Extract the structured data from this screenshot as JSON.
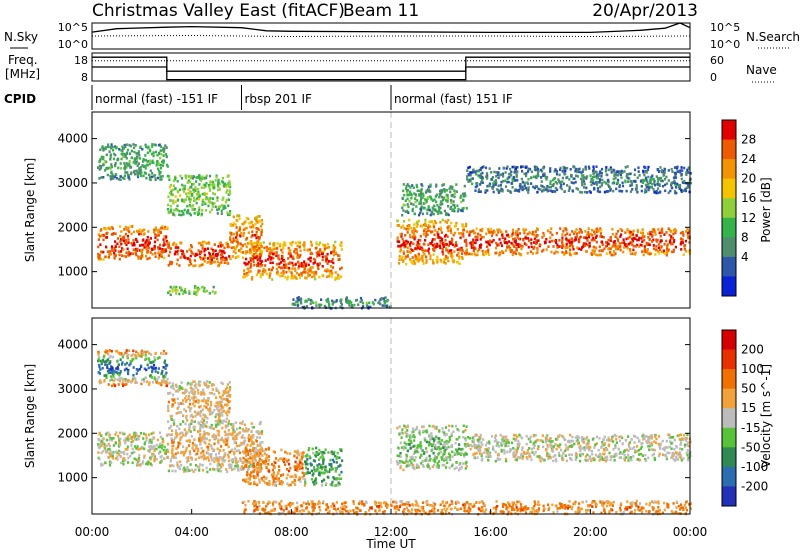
{
  "header": {
    "station": "Christmas Valley East (fitACF)",
    "beam": "Beam 11",
    "date": "20/Apr/2013"
  },
  "colors": {
    "power": [
      "#0a22d6",
      "#2d57a8",
      "#4f8d6f",
      "#35b24a",
      "#8fcf3a",
      "#f5c400",
      "#f39300",
      "#ee5a00",
      "#e10000"
    ],
    "velocity": [
      "#2330b8",
      "#2a6db0",
      "#2e8a52",
      "#58c23a",
      "#bcbcbc",
      "#f2a23a",
      "#f07000",
      "#e83000",
      "#d60000"
    ],
    "ground_scatter": "#bcbcbc"
  },
  "chart_data": [
    {
      "type": "line",
      "name_left": "N.Sky",
      "name_right": "N.Search",
      "y_ticks_left": [
        "10^5",
        "10^0"
      ],
      "y_ticks_right": [
        "10^5",
        "10^0"
      ],
      "series": [
        {
          "line": "solid",
          "t": [
            0,
            1,
            3,
            4,
            6,
            7,
            8,
            12,
            16,
            20,
            22,
            23,
            23.6,
            24
          ],
          "values": [
            0.65,
            0.78,
            0.84,
            0.86,
            0.82,
            0.7,
            0.68,
            0.66,
            0.64,
            0.64,
            0.72,
            0.8,
            1.0,
            0.82
          ]
        },
        {
          "line": "dotted",
          "t": [
            0,
            4,
            8,
            12,
            16,
            20,
            24
          ],
          "values": [
            0.5,
            0.52,
            0.48,
            0.5,
            0.5,
            0.48,
            0.5
          ]
        }
      ]
    },
    {
      "type": "line",
      "name_left_1": "Freq.",
      "name_left_2": "[MHz]",
      "name_right": "Nave",
      "y_ticks_left": [
        "18",
        "8"
      ],
      "y_ticks_right": [
        "60",
        "0"
      ],
      "series": [
        {
          "line": "solid",
          "t": [
            0,
            3,
            3,
            15,
            15,
            24
          ],
          "values": [
            0.85,
            0.85,
            0.35,
            0.35,
            0.85,
            0.85
          ]
        },
        {
          "line": "solid",
          "t": [
            0,
            3,
            3,
            15,
            15,
            24
          ],
          "values": [
            0.5,
            0.5,
            0.05,
            0.05,
            0.5,
            0.5
          ]
        },
        {
          "line": "dotted",
          "t": [
            0,
            24
          ],
          "values": [
            0.72,
            0.72
          ]
        }
      ]
    },
    {
      "type": "table",
      "label": "CPID",
      "segments": [
        {
          "start": 0,
          "end": 6,
          "text": "normal (fast) -151 IF"
        },
        {
          "start": 6,
          "end": 12,
          "text": "rbsp 201 IF"
        },
        {
          "start": 12,
          "end": 24,
          "text": "normal (fast) 151 IF"
        }
      ]
    },
    {
      "type": "heatmap",
      "ylabel": "Slant Range [km]",
      "xlim": [
        0,
        24
      ],
      "ylim": [
        180,
        4600
      ],
      "y_ticks": [
        1000,
        2000,
        3000,
        4000
      ],
      "colorbar_label": "Power [dB]",
      "colorbar_ticks": [
        "28",
        "24",
        "20",
        "16",
        "12",
        "8",
        "4"
      ],
      "regions": [
        {
          "t0": 0.2,
          "t1": 3.0,
          "r0": 1300,
          "r1": 2050,
          "level": 6,
          "core": 8
        },
        {
          "t0": 3.0,
          "t1": 5.5,
          "r0": 1150,
          "r1": 1700,
          "level": 6,
          "core": 8
        },
        {
          "t0": 5.5,
          "t1": 6.8,
          "r0": 1300,
          "r1": 2300,
          "level": 5,
          "core": 7
        },
        {
          "t0": 6.0,
          "t1": 10.0,
          "r0": 850,
          "r1": 1700,
          "level": 5,
          "core": 8
        },
        {
          "t0": 0.2,
          "t1": 3.0,
          "r0": 3100,
          "r1": 3900,
          "level": 2,
          "core": 3
        },
        {
          "t0": 3.0,
          "t1": 5.5,
          "r0": 2300,
          "r1": 3200,
          "level": 3,
          "core": 4
        },
        {
          "t0": 3.0,
          "t1": 5.0,
          "r0": 500,
          "r1": 700,
          "level": 3,
          "core": 4
        },
        {
          "t0": 12.2,
          "t1": 15.0,
          "r0": 1200,
          "r1": 2200,
          "level": 5,
          "core": 8
        },
        {
          "t0": 12.4,
          "t1": 15.0,
          "r0": 2300,
          "r1": 3000,
          "level": 2,
          "core": 3
        },
        {
          "t0": 15.0,
          "t1": 24.0,
          "r0": 1400,
          "r1": 2000,
          "level": 6,
          "core": 8
        },
        {
          "t0": 15.0,
          "t1": 24.0,
          "r0": 2800,
          "r1": 3400,
          "level": 1,
          "core": 2
        },
        {
          "t0": 8.0,
          "t1": 12.0,
          "r0": 200,
          "r1": 450,
          "level": 1,
          "core": 3
        }
      ]
    },
    {
      "type": "heatmap",
      "xlabel": "Time UT",
      "ylabel": "Slant Range [km]",
      "xlim": [
        0,
        24
      ],
      "ylim": [
        180,
        4600
      ],
      "x_ticks": [
        "00:00",
        "04:00",
        "08:00",
        "12:00",
        "16:00",
        "20:00",
        "00:00"
      ],
      "y_ticks": [
        1000,
        2000,
        3000,
        4000
      ],
      "colorbar_label": "Velocity [m s^-1]",
      "colorbar_ticks": [
        "200",
        "100",
        "50",
        "15",
        "-15",
        "-50",
        "-100",
        "-200"
      ],
      "regions": [
        {
          "t0": 0.2,
          "t1": 3.0,
          "r0": 1300,
          "r1": 2050,
          "level": 4,
          "core": 4
        },
        {
          "t0": 3.0,
          "t1": 6.8,
          "r0": 1150,
          "r1": 2300,
          "level": 4,
          "core": 5
        },
        {
          "t0": 6.0,
          "t1": 8.5,
          "r0": 850,
          "r1": 1700,
          "level": 5,
          "core": 6
        },
        {
          "t0": 8.5,
          "t1": 10.0,
          "r0": 850,
          "r1": 1700,
          "level": 3,
          "core": 2
        },
        {
          "t0": 0.2,
          "t1": 3.0,
          "r0": 3100,
          "r1": 3900,
          "level": 6,
          "core": 0
        },
        {
          "t0": 3.0,
          "t1": 5.5,
          "r0": 2300,
          "r1": 3200,
          "level": 4,
          "core": 5
        },
        {
          "t0": 12.2,
          "t1": 15.0,
          "r0": 1200,
          "r1": 2200,
          "level": 4,
          "core": 3
        },
        {
          "t0": 15.0,
          "t1": 24.0,
          "r0": 1400,
          "r1": 2000,
          "level": 4,
          "core": 4
        },
        {
          "t0": 6.0,
          "t1": 24.0,
          "r0": 200,
          "r1": 500,
          "level": 5,
          "core": 6
        }
      ]
    }
  ]
}
